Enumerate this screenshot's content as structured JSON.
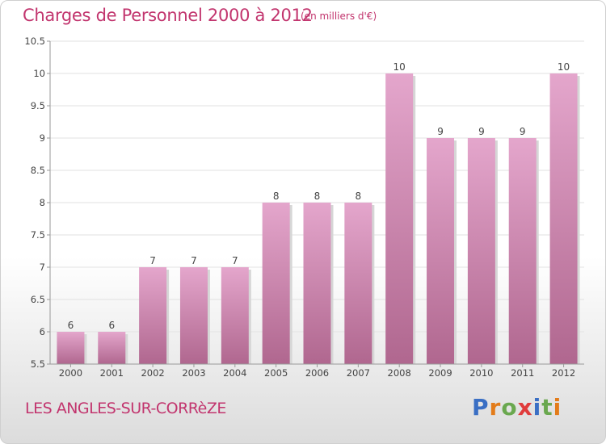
{
  "header": {
    "title": "Charges de Personnel 2000 à 2012",
    "unit": "(en milliers d'€)"
  },
  "footer": {
    "commune": "LES ANGLES-SUR-CORRèZE",
    "brand": [
      "P",
      "r",
      "o",
      "x",
      "i",
      "t",
      "i"
    ]
  },
  "colors": {
    "title": "#c2356e",
    "bar_top": "#e4a6cc",
    "bar_bottom": "#b0678f",
    "grid": "#e2e2e2",
    "brand": [
      "#3a6fc4",
      "#e37c1a",
      "#6aa84f",
      "#e03c3c",
      "#3a6fc4",
      "#6aa84f",
      "#e37c1a"
    ]
  },
  "chart_data": {
    "type": "bar",
    "title": "Charges de Personnel 2000 à 2012",
    "subtitle": "(en milliers d'€)",
    "categories": [
      "2000",
      "2001",
      "2002",
      "2003",
      "2004",
      "2005",
      "2006",
      "2007",
      "2008",
      "2009",
      "2010",
      "2011",
      "2012"
    ],
    "values": [
      6,
      6,
      7,
      7,
      7,
      8,
      8,
      8,
      10,
      9,
      9,
      9,
      10
    ],
    "data_labels": [
      "6",
      "6",
      "7",
      "7",
      "7",
      "8",
      "8",
      "8",
      "10",
      "9",
      "9",
      "9",
      "10"
    ],
    "ylim": [
      5.5,
      10.5
    ],
    "yticks": [
      "5.5",
      "6",
      "6.5",
      "7",
      "7.5",
      "8",
      "8.5",
      "9",
      "9.5",
      "10",
      "10.5"
    ],
    "grid": true
  }
}
